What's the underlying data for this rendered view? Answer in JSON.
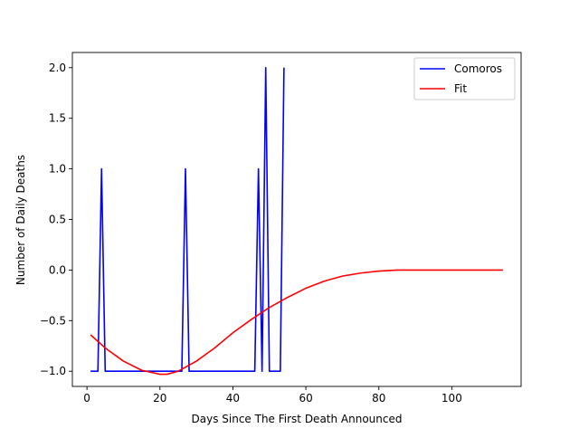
{
  "chart_data": {
    "type": "line",
    "title": "",
    "xlabel": "Days Since The First Death Announced",
    "ylabel": "Number of Daily Deaths",
    "xlim": [
      -4,
      119
    ],
    "ylim": [
      -1.15,
      2.15
    ],
    "xticks": [
      0,
      20,
      40,
      60,
      80,
      100
    ],
    "yticks": [
      -1.0,
      -0.5,
      0.0,
      0.5,
      1.0,
      1.5,
      2.0
    ],
    "grid": false,
    "legend_position": "top-right",
    "series": [
      {
        "name": "Comoros",
        "color": "#0000ff",
        "x": [
          1,
          2,
          3,
          4,
          5,
          6,
          26,
          27,
          28,
          29,
          46,
          47,
          48,
          49,
          50,
          51,
          52,
          53,
          54
        ],
        "y": [
          -1,
          -1,
          -1,
          1,
          -1,
          -1,
          -1,
          1,
          -1,
          -1,
          -1,
          1,
          -1,
          2,
          -1,
          -1,
          -1,
          -1,
          2
        ]
      },
      {
        "name": "Fit",
        "color": "#ff0000",
        "x": [
          1,
          5,
          10,
          15,
          20,
          22,
          25,
          30,
          35,
          40,
          45,
          50,
          55,
          60,
          65,
          70,
          75,
          80,
          85,
          90,
          95,
          100,
          105,
          110,
          114
        ],
        "y": [
          -0.64,
          -0.77,
          -0.9,
          -0.99,
          -1.03,
          -1.03,
          -1.0,
          -0.9,
          -0.77,
          -0.62,
          -0.49,
          -0.37,
          -0.27,
          -0.18,
          -0.11,
          -0.06,
          -0.03,
          -0.01,
          0.0,
          0.0,
          0.0,
          0.0,
          0.0,
          0.0,
          0.0
        ]
      }
    ]
  }
}
